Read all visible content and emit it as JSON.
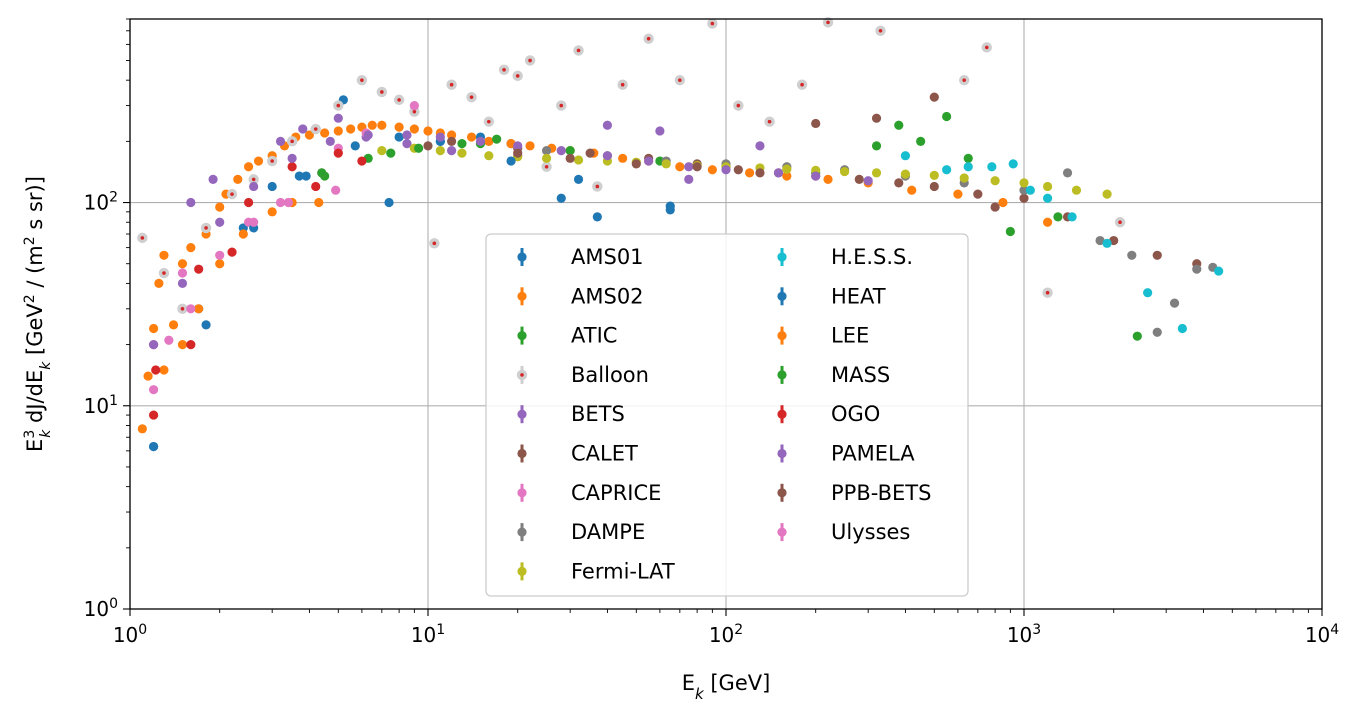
{
  "chart_data": {
    "type": "scatter",
    "xscale": "log",
    "yscale": "log",
    "xlim": [
      1,
      10000
    ],
    "ylim": [
      1,
      800
    ],
    "grid": true,
    "xlabel": "E_k [GeV]",
    "ylabel": "E_k^3 dJ/dE_k [GeV^2 / (m^2 s sr)]",
    "x_ticks": [
      {
        "value": 1,
        "base": "10",
        "exp": "0"
      },
      {
        "value": 10,
        "base": "10",
        "exp": "1"
      },
      {
        "value": 100,
        "base": "10",
        "exp": "2"
      },
      {
        "value": 1000,
        "base": "10",
        "exp": "3"
      },
      {
        "value": 10000,
        "base": "10",
        "exp": "4"
      }
    ],
    "y_ticks": [
      {
        "value": 1,
        "base": "10",
        "exp": "0"
      },
      {
        "value": 10,
        "base": "10",
        "exp": "1"
      },
      {
        "value": 100,
        "base": "10",
        "exp": "2"
      }
    ],
    "legend_position": "lower-center",
    "legend_columns": 2,
    "series": [
      {
        "name": "AMS01",
        "color": "#1f77b4",
        "x": [
          1.2,
          1.7,
          2.4,
          3.0,
          3.9,
          5.2,
          7.4,
          11,
          15,
          19,
          28,
          37,
          65
        ],
        "y": [
          6.3,
          30,
          75,
          120,
          135,
          320,
          100,
          200,
          210,
          195,
          105,
          85,
          92
        ]
      },
      {
        "name": "AMS02",
        "color": "#ff7f0e",
        "x": [
          1.1,
          1.15,
          1.2,
          1.25,
          1.3,
          1.4,
          1.5,
          1.6,
          1.8,
          2.0,
          2.1,
          2.3,
          2.5,
          2.7,
          3.0,
          3.3,
          3.6,
          4.0,
          4.5,
          5.0,
          5.5,
          6.0,
          6.5,
          7.0,
          8.0,
          9.0,
          10,
          11,
          12,
          14,
          16,
          19,
          22,
          26,
          30,
          36,
          45,
          55,
          70,
          90,
          120,
          160,
          220,
          300,
          420,
          600,
          850,
          1200
        ],
        "y": [
          7.7,
          14,
          24,
          40,
          55,
          25,
          50,
          60,
          70,
          95,
          110,
          130,
          150,
          160,
          170,
          190,
          210,
          215,
          220,
          225,
          230,
          235,
          240,
          240,
          235,
          230,
          225,
          220,
          215,
          210,
          200,
          195,
          190,
          185,
          180,
          175,
          165,
          160,
          150,
          145,
          140,
          135,
          130,
          125,
          115,
          110,
          100,
          80
        ]
      },
      {
        "name": "ATIC",
        "color": "#2ca02c",
        "x": [
          4.5,
          7.5,
          15,
          30,
          60,
          100,
          200,
          320,
          380,
          450,
          550,
          650,
          900,
          1300,
          2400
        ],
        "y": [
          135,
          175,
          195,
          180,
          160,
          150,
          140,
          190,
          240,
          200,
          265,
          165,
          72,
          85,
          22
        ]
      },
      {
        "name": "Balloon",
        "color": "#d62728",
        "x": [
          1.1,
          1.3,
          1.5,
          1.8,
          2.2,
          2.6,
          3.0,
          3.5,
          4.2,
          5.0,
          6.0,
          7.0,
          8.0,
          9.0,
          10.5,
          12,
          14,
          16,
          18,
          20,
          22,
          25,
          28,
          32,
          37,
          45,
          55,
          70,
          90,
          110,
          140,
          180,
          220,
          330,
          630,
          750,
          1200,
          2100
        ],
        "y": [
          67,
          45,
          30,
          75,
          110,
          130,
          160,
          200,
          230,
          300,
          400,
          350,
          320,
          280,
          63,
          380,
          330,
          250,
          450,
          420,
          500,
          150,
          300,
          560,
          120,
          380,
          640,
          400,
          760,
          300,
          250,
          380,
          770,
          700,
          400,
          580,
          36,
          80
        ]
      },
      {
        "name": "BETS",
        "color": "#9467bd",
        "x": [
          1.6,
          1.9,
          3.2,
          3.8,
          5.0,
          6.2,
          8.5,
          12,
          20,
          40,
          60,
          75,
          130
        ],
        "y": [
          100,
          130,
          200,
          230,
          260,
          210,
          195,
          180,
          170,
          240,
          225,
          130,
          190
        ]
      },
      {
        "name": "CALET",
        "color": "#8c564b",
        "x": [
          12,
          20,
          35,
          55,
          80,
          110,
          150,
          200,
          280,
          380,
          500,
          700,
          1000,
          1400,
          2000,
          2800,
          3800
        ],
        "y": [
          200,
          185,
          175,
          165,
          155,
          145,
          140,
          135,
          130,
          125,
          120,
          110,
          105,
          85,
          65,
          55,
          50
        ]
      },
      {
        "name": "CAPRICE",
        "color": "#e377c2",
        "x": [
          1.2,
          1.5,
          2.5,
          3.2,
          4.4,
          5.0,
          6.2,
          9.0
        ],
        "y": [
          20,
          45,
          80,
          100,
          140,
          185,
          220,
          300
        ]
      },
      {
        "name": "DAMPE",
        "color": "#7f7f7f",
        "x": [
          25,
          40,
          63,
          100,
          160,
          250,
          400,
          630,
          1000,
          1400,
          1800,
          2300,
          2800,
          3200,
          3800,
          4300
        ],
        "y": [
          180,
          170,
          160,
          155,
          150,
          145,
          135,
          125,
          115,
          140,
          65,
          55,
          23,
          32,
          47,
          48
        ]
      },
      {
        "name": "Fermi-LAT",
        "color": "#bcbd22",
        "x": [
          7,
          9,
          11,
          13,
          16,
          20,
          25,
          32,
          40,
          50,
          63,
          80,
          100,
          130,
          160,
          200,
          250,
          320,
          400,
          500,
          630,
          800,
          1000,
          1200,
          1500,
          1900
        ],
        "y": [
          180,
          185,
          180,
          175,
          170,
          168,
          165,
          162,
          160,
          158,
          155,
          152,
          150,
          148,
          146,
          144,
          142,
          140,
          138,
          136,
          132,
          128,
          125,
          120,
          115,
          110
        ]
      },
      {
        "name": "H.E.S.S.",
        "color": "#17becf",
        "x": [
          400,
          550,
          650,
          780,
          920,
          1050,
          1200,
          1450,
          1900,
          2600,
          3400,
          4500
        ],
        "y": [
          170,
          145,
          150,
          150,
          155,
          115,
          105,
          85,
          63,
          36,
          24,
          46
        ]
      },
      {
        "name": "HEAT",
        "color": "#1f77b4",
        "x": [
          1.2,
          1.8,
          2.6,
          3.7,
          5.7,
          8.0,
          11,
          19,
          32,
          65
        ],
        "y": [
          6.3,
          25,
          75,
          135,
          190,
          210,
          200,
          160,
          130,
          96
        ]
      },
      {
        "name": "LEE",
        "color": "#ff7f0e",
        "x": [
          1.3,
          1.5,
          1.7,
          2.0,
          2.4,
          3.0,
          3.5,
          4.3
        ],
        "y": [
          15,
          20,
          30,
          50,
          70,
          90,
          100,
          100
        ]
      },
      {
        "name": "MASS",
        "color": "#2ca02c",
        "x": [
          4.4,
          6.3,
          9.3,
          13,
          17
        ],
        "y": [
          140,
          165,
          185,
          195,
          205
        ]
      },
      {
        "name": "OGO",
        "color": "#d62728",
        "x": [
          1.2,
          1.22,
          1.6,
          1.7,
          2.2,
          2.5,
          3.5,
          4.2,
          5.0,
          6.0
        ],
        "y": [
          9,
          15,
          20,
          47,
          57,
          100,
          150,
          120,
          175,
          160
        ]
      },
      {
        "name": "PAMELA",
        "color": "#9467bd",
        "x": [
          1.2,
          1.5,
          2.0,
          2.6,
          3.5,
          4.7,
          6.3,
          8.5,
          11,
          15,
          20,
          28,
          40,
          55,
          75,
          100,
          150,
          200,
          300
        ],
        "y": [
          20,
          40,
          80,
          120,
          165,
          200,
          215,
          215,
          210,
          200,
          190,
          180,
          170,
          160,
          150,
          145,
          140,
          135,
          128
        ]
      },
      {
        "name": "PPB-BETS",
        "color": "#8c564b",
        "x": [
          10,
          20,
          30,
          50,
          80,
          130,
          200,
          320,
          500,
          800
        ],
        "y": [
          190,
          175,
          165,
          155,
          150,
          140,
          245,
          260,
          330,
          95
        ]
      },
      {
        "name": "Ulysses",
        "color": "#e377c2",
        "x": [
          1.2,
          1.35,
          1.6,
          2.0,
          2.6,
          3.4,
          4.9
        ],
        "y": [
          12,
          21,
          30,
          55,
          80,
          100,
          115
        ]
      }
    ]
  }
}
